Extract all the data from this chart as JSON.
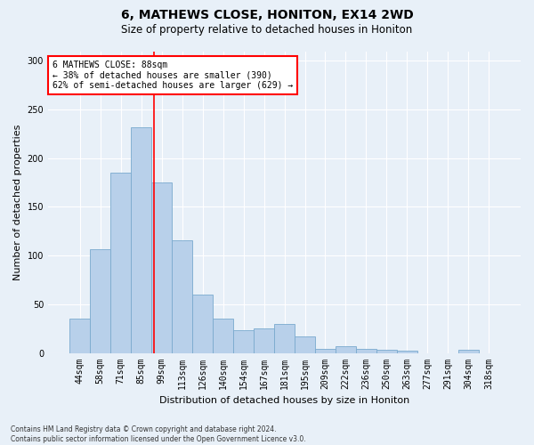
{
  "title1": "6, MATHEWS CLOSE, HONITON, EX14 2WD",
  "title2": "Size of property relative to detached houses in Honiton",
  "xlabel": "Distribution of detached houses by size in Honiton",
  "ylabel": "Number of detached properties",
  "footnote": "Contains HM Land Registry data © Crown copyright and database right 2024.\nContains public sector information licensed under the Open Government Licence v3.0.",
  "categories": [
    "44sqm",
    "58sqm",
    "71sqm",
    "85sqm",
    "99sqm",
    "113sqm",
    "126sqm",
    "140sqm",
    "154sqm",
    "167sqm",
    "181sqm",
    "195sqm",
    "209sqm",
    "222sqm",
    "236sqm",
    "250sqm",
    "263sqm",
    "277sqm",
    "291sqm",
    "304sqm",
    "318sqm"
  ],
  "values": [
    35,
    107,
    185,
    232,
    175,
    116,
    60,
    35,
    23,
    25,
    30,
    17,
    4,
    7,
    4,
    3,
    2,
    0,
    0,
    3,
    0
  ],
  "bar_color": "#b8d0ea",
  "bar_edge_color": "#7aaace",
  "bg_color": "#e8f0f8",
  "grid_color": "#d0d8e8",
  "vline_x": 3.64,
  "vline_color": "red",
  "annotation_title": "6 MATHEWS CLOSE: 88sqm",
  "annotation_line2": "← 38% of detached houses are smaller (390)",
  "annotation_line3": "62% of semi-detached houses are larger (629) →",
  "annotation_box_color": "white",
  "annotation_box_edge": "red",
  "ylim": [
    0,
    310
  ],
  "yticks": [
    0,
    50,
    100,
    150,
    200,
    250,
    300
  ],
  "title1_fontsize": 10,
  "title2_fontsize": 8.5,
  "xlabel_fontsize": 8,
  "ylabel_fontsize": 8,
  "tick_fontsize": 7,
  "ann_fontsize": 7,
  "footnote_fontsize": 5.5
}
